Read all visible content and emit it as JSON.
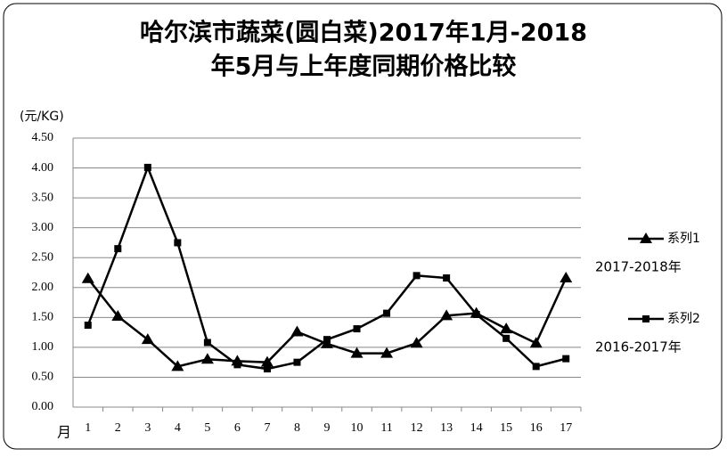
{
  "chart_data": {
    "type": "line",
    "title": [
      "哈尔滨市蔬菜(圆白菜)2017年1月-2018",
      "年5月与上年度同期价格比较"
    ],
    "y_label": "(元/KG)",
    "x_label": "月",
    "categories": [
      "1",
      "2",
      "3",
      "4",
      "5",
      "6",
      "7",
      "8",
      "9",
      "10",
      "11",
      "12",
      "13",
      "14",
      "15",
      "16",
      "17"
    ],
    "series": [
      {
        "name": "系列1",
        "color": "#000000",
        "marker": "triangle",
        "note": "2017-2018年",
        "values": [
          2.15,
          1.52,
          1.13,
          0.68,
          0.8,
          0.77,
          0.75,
          1.26,
          1.06,
          0.9,
          0.9,
          1.07,
          1.53,
          1.57,
          1.31,
          1.07,
          2.16
        ]
      },
      {
        "name": "系列2",
        "color": "#000000",
        "marker": "square",
        "note": "2016-2017年",
        "values": [
          1.37,
          2.65,
          4.01,
          2.75,
          1.08,
          0.71,
          0.64,
          0.75,
          1.13,
          1.31,
          1.57,
          2.2,
          2.16,
          1.55,
          1.15,
          0.68,
          0.81
        ]
      }
    ],
    "ylim": [
      0,
      4.5
    ],
    "yticks": [
      {
        "value": 0,
        "label": "0.00"
      },
      {
        "value": 0.5,
        "label": "0.50"
      },
      {
        "value": 1,
        "label": "1.00"
      },
      {
        "value": 1.5,
        "label": "1.50"
      },
      {
        "value": 2,
        "label": "2.00"
      },
      {
        "value": 2.5,
        "label": "2.50"
      },
      {
        "value": 3,
        "label": "3.00"
      },
      {
        "value": 3.5,
        "label": "3.50"
      },
      {
        "value": 4,
        "label": "4.00"
      },
      {
        "value": 4.5,
        "label": "4.50"
      }
    ],
    "grid": true
  }
}
